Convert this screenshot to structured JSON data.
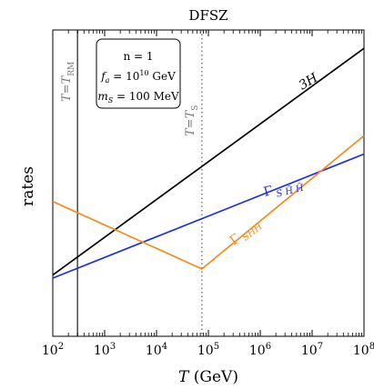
{
  "chart_data": {
    "type": "line",
    "title": "DFSZ",
    "xlabel": "T (GeV)",
    "ylabel": "rates",
    "x_scale": "log",
    "xlim": [
      100,
      100000000
    ],
    "ylim": [
      0,
      1
    ],
    "x_tick_labels": [
      {
        "value": 100,
        "base": "10",
        "exp": "2"
      },
      {
        "value": 1000,
        "base": "10",
        "exp": "3"
      },
      {
        "value": 10000,
        "base": "10",
        "exp": "4"
      },
      {
        "value": 100000,
        "base": "10",
        "exp": "5"
      },
      {
        "value": 1000000,
        "base": "10",
        "exp": "6"
      },
      {
        "value": 10000000,
        "base": "10",
        "exp": "7"
      },
      {
        "value": 100000000,
        "base": "10",
        "exp": "8"
      }
    ],
    "series": [
      {
        "name": "3H",
        "color": "#000000",
        "x": [
          100,
          100000000
        ],
        "y": [
          0.2,
          0.94
        ]
      },
      {
        "name": "Γ S H̃ H̃",
        "color": "#1f2ee0",
        "x": [
          100,
          100000000
        ],
        "y": [
          0.19,
          0.595
        ]
      },
      {
        "name": "Γ SHH",
        "color": "#f28c1e",
        "x": [
          100,
          75000,
          100000000
        ],
        "y": [
          0.44,
          0.22,
          0.655
        ]
      }
    ],
    "vertical_lines": [
      {
        "label": "T = T_RM",
        "x": 300,
        "color": "#555555",
        "style": "solid"
      },
      {
        "label": "T = T_S",
        "x": 75000,
        "color": "#777777",
        "style": "dotted"
      }
    ],
    "annotation_box": {
      "lines": [
        "n = 1",
        "f_a = 10^10 GeV",
        "m_S = 100 MeV"
      ]
    },
    "grid": false,
    "legend": "none"
  }
}
